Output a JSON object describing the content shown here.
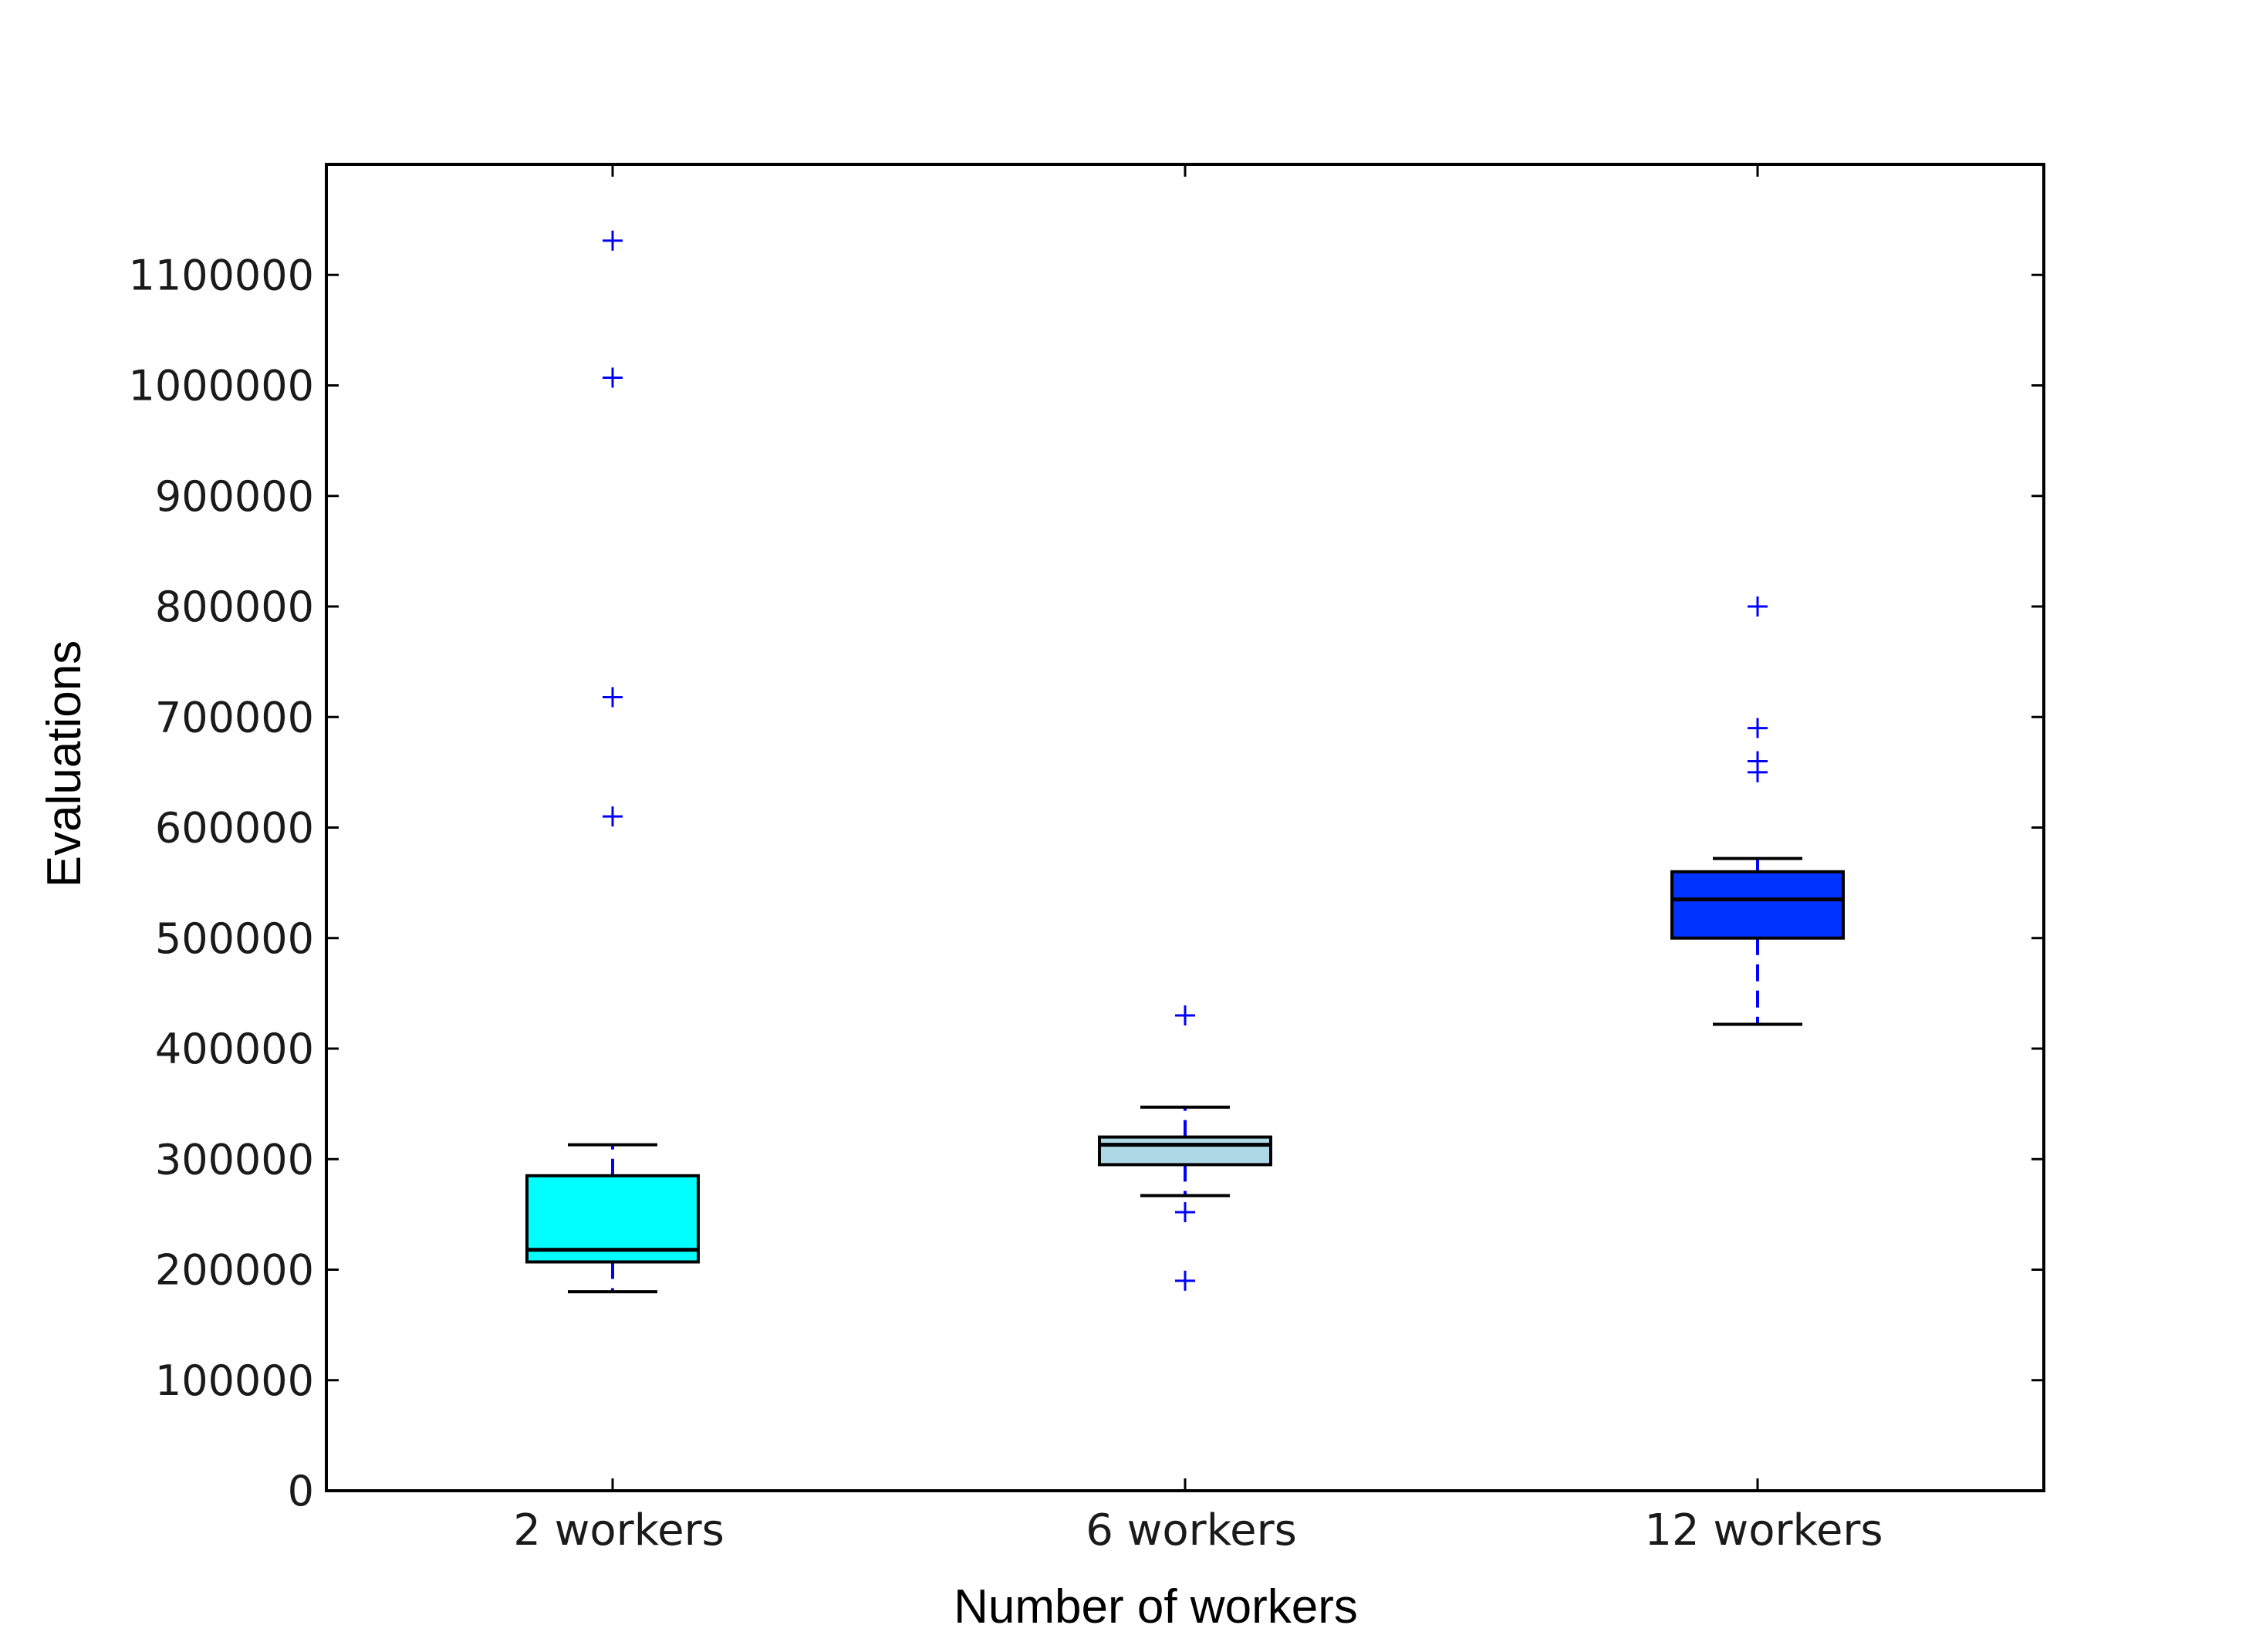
{
  "chart_data": {
    "type": "box",
    "title": "",
    "xlabel": "Number of workers",
    "ylabel": "Evaluations",
    "categories": [
      "2 workers",
      "6 workers",
      "12 workers"
    ],
    "ylim": [
      0,
      1200000
    ],
    "yticks": [
      0,
      100000,
      200000,
      300000,
      400000,
      500000,
      600000,
      700000,
      800000,
      900000,
      1000000,
      1100000
    ],
    "ytick_labels": [
      "0",
      "100000",
      "200000",
      "300000",
      "400000",
      "500000",
      "600000",
      "700000",
      "800000",
      "900000",
      "1000000",
      "1100000"
    ],
    "grid": false,
    "legend": "none",
    "series": [
      {
        "category": "2 workers",
        "whisker_low": 180000,
        "q1": 207000,
        "median": 218000,
        "q3": 285000,
        "whisker_high": 313000,
        "outliers": [
          610000,
          718000,
          1007000,
          1131000
        ],
        "color": "#00ffff"
      },
      {
        "category": "6 workers",
        "whisker_low": 267000,
        "q1": 295000,
        "median": 313000,
        "q3": 320000,
        "whisker_high": 347000,
        "outliers": [
          190000,
          252000,
          430000
        ],
        "color": "#add8e6"
      },
      {
        "category": "12 workers",
        "whisker_low": 422000,
        "q1": 500000,
        "median": 535000,
        "q3": 560000,
        "whisker_high": 572000,
        "outliers": [
          650000,
          660000,
          690000,
          800000
        ],
        "color": "#0033ff"
      }
    ],
    "outlier_color": "#0000ff",
    "axis_color": "#000000"
  }
}
